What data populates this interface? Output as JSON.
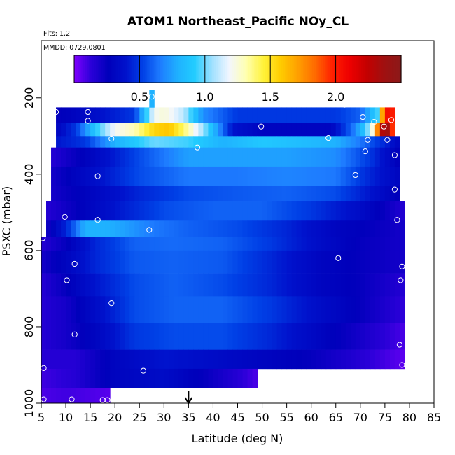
{
  "chart_data": {
    "type": "heatmap",
    "title": "ATOM1 Northeast_Pacific NOy_CL",
    "annotations": {
      "flights": "Flts: 1,2",
      "dates": "MMDD: 0729,0801"
    },
    "xlabel": "Latitude (deg N)",
    "ylabel": "PSXC (mbar)",
    "xlim": [
      5,
      85
    ],
    "ylim": [
      1000,
      50
    ],
    "y_reversed": true,
    "x_ticks": [
      5,
      10,
      15,
      20,
      25,
      30,
      35,
      40,
      45,
      50,
      55,
      60,
      65,
      70,
      75,
      80,
      85
    ],
    "y_ticks": [
      200,
      400,
      600,
      800,
      1000
    ],
    "colorbar": {
      "range": [
        0,
        2.5
      ],
      "ticks": [
        0.5,
        1.0,
        1.5,
        2.0
      ],
      "tick_labels": [
        "0.5",
        "1.0",
        "1.5",
        "2.0"
      ],
      "colors": [
        "#7f00ff",
        "#2a00d8",
        "#0000bb",
        "#0012cc",
        "#0040e6",
        "#1e7cff",
        "#1fb0ff",
        "#22ccff",
        "#9ee0ff",
        "#f2f6ff",
        "#ffffb0",
        "#fff23a",
        "#ffcc00",
        "#ffa000",
        "#ff6a00",
        "#ff2000",
        "#ee0000",
        "#c40000",
        "#a01010",
        "#8b1a1a"
      ]
    },
    "marker": {
      "latitude": 35,
      "direction": "down"
    },
    "layers": [
      {
        "p_top": 225,
        "p_bot": 265,
        "lat_min": 8,
        "lat_max": 77,
        "points": [
          [
            8,
            0.25
          ],
          [
            12,
            0.3
          ],
          [
            18,
            0.4
          ],
          [
            24,
            0.5
          ],
          [
            28,
            1.2
          ],
          [
            30,
            1.25
          ],
          [
            34,
            1.1
          ],
          [
            38,
            0.7
          ],
          [
            45,
            0.5
          ],
          [
            50,
            0.5
          ],
          [
            58,
            0.5
          ],
          [
            65,
            0.5
          ],
          [
            70,
            0.6
          ],
          [
            74,
            1.0
          ],
          [
            75,
            2.4
          ],
          [
            76,
            1.7
          ],
          [
            77,
            2.3
          ]
        ]
      },
      {
        "p_top": 265,
        "p_bot": 300,
        "lat_min": 8,
        "lat_max": 77,
        "points": [
          [
            8,
            0.3
          ],
          [
            12,
            0.5
          ],
          [
            16,
            0.9
          ],
          [
            20,
            1.2
          ],
          [
            24,
            1.3
          ],
          [
            28,
            1.55
          ],
          [
            31,
            1.6
          ],
          [
            34,
            1.4
          ],
          [
            38,
            1.05
          ],
          [
            44,
            0.4
          ],
          [
            50,
            0.3
          ],
          [
            58,
            0.3
          ],
          [
            64,
            0.3
          ],
          [
            68,
            0.6
          ],
          [
            71,
            0.9
          ],
          [
            73,
            1.35
          ],
          [
            74,
            2.2
          ],
          [
            75,
            2.4
          ],
          [
            76,
            2.3
          ],
          [
            77,
            1.6
          ]
        ]
      },
      {
        "p_top": 300,
        "p_bot": 330,
        "lat_min": 8,
        "lat_max": 78,
        "points": [
          [
            8,
            0.4
          ],
          [
            14,
            0.5
          ],
          [
            20,
            0.8
          ],
          [
            28,
            1.0
          ],
          [
            35,
            0.95
          ],
          [
            42,
            0.8
          ],
          [
            50,
            0.9
          ],
          [
            58,
            0.85
          ],
          [
            65,
            0.8
          ],
          [
            70,
            0.65
          ],
          [
            75,
            0.45
          ],
          [
            78,
            0.3
          ]
        ]
      },
      {
        "p_top": 330,
        "p_bot": 380,
        "lat_min": 7,
        "lat_max": 78,
        "points": [
          [
            7,
            0.15
          ],
          [
            15,
            0.3
          ],
          [
            25,
            0.55
          ],
          [
            35,
            0.75
          ],
          [
            45,
            0.75
          ],
          [
            55,
            0.75
          ],
          [
            65,
            0.7
          ],
          [
            72,
            0.5
          ],
          [
            78,
            0.25
          ]
        ]
      },
      {
        "p_top": 380,
        "p_bot": 430,
        "lat_min": 7,
        "lat_max": 78,
        "points": [
          [
            7,
            0.2
          ],
          [
            15,
            0.35
          ],
          [
            25,
            0.55
          ],
          [
            35,
            0.65
          ],
          [
            45,
            0.65
          ],
          [
            55,
            0.68
          ],
          [
            65,
            0.65
          ],
          [
            72,
            0.45
          ],
          [
            78,
            0.3
          ]
        ]
      },
      {
        "p_top": 430,
        "p_bot": 470,
        "lat_min": 7,
        "lat_max": 78,
        "points": [
          [
            7,
            0.2
          ],
          [
            15,
            0.3
          ],
          [
            25,
            0.45
          ],
          [
            35,
            0.55
          ],
          [
            45,
            0.58
          ],
          [
            55,
            0.6
          ],
          [
            65,
            0.55
          ],
          [
            72,
            0.4
          ],
          [
            78,
            0.25
          ]
        ]
      },
      {
        "p_top": 470,
        "p_bot": 520,
        "lat_min": 6,
        "lat_max": 79,
        "points": [
          [
            6,
            0.15
          ],
          [
            12,
            0.25
          ],
          [
            20,
            0.4
          ],
          [
            30,
            0.55
          ],
          [
            40,
            0.6
          ],
          [
            50,
            0.6
          ],
          [
            60,
            0.5
          ],
          [
            70,
            0.35
          ],
          [
            79,
            0.15
          ]
        ]
      },
      {
        "p_top": 520,
        "p_bot": 565,
        "lat_min": 6,
        "lat_max": 79,
        "points": [
          [
            6,
            0.2
          ],
          [
            10,
            0.45
          ],
          [
            14,
            0.8
          ],
          [
            18,
            0.8
          ],
          [
            22,
            0.75
          ],
          [
            28,
            0.65
          ],
          [
            35,
            0.6
          ],
          [
            45,
            0.55
          ],
          [
            55,
            0.45
          ],
          [
            65,
            0.3
          ],
          [
            72,
            0.25
          ],
          [
            79,
            0.2
          ]
        ]
      },
      {
        "p_top": 565,
        "p_bot": 600,
        "lat_min": 5,
        "lat_max": 79,
        "points": [
          [
            5,
            0.15
          ],
          [
            10,
            0.25
          ],
          [
            16,
            0.45
          ],
          [
            24,
            0.6
          ],
          [
            32,
            0.62
          ],
          [
            42,
            0.6
          ],
          [
            52,
            0.5
          ],
          [
            62,
            0.35
          ],
          [
            70,
            0.25
          ],
          [
            79,
            0.2
          ]
        ]
      },
      {
        "p_top": 600,
        "p_bot": 660,
        "lat_min": 5,
        "lat_max": 79,
        "points": [
          [
            5,
            0.2
          ],
          [
            10,
            0.3
          ],
          [
            16,
            0.45
          ],
          [
            24,
            0.58
          ],
          [
            32,
            0.6
          ],
          [
            42,
            0.58
          ],
          [
            52,
            0.45
          ],
          [
            62,
            0.3
          ],
          [
            70,
            0.25
          ],
          [
            79,
            0.2
          ]
        ]
      },
      {
        "p_top": 660,
        "p_bot": 720,
        "lat_min": 5,
        "lat_max": 79,
        "points": [
          [
            5,
            0.15
          ],
          [
            10,
            0.25
          ],
          [
            16,
            0.4
          ],
          [
            24,
            0.55
          ],
          [
            32,
            0.6
          ],
          [
            42,
            0.55
          ],
          [
            52,
            0.45
          ],
          [
            62,
            0.3
          ],
          [
            70,
            0.25
          ],
          [
            79,
            0.15
          ]
        ]
      },
      {
        "p_top": 720,
        "p_bot": 790,
        "lat_min": 5,
        "lat_max": 79,
        "points": [
          [
            5,
            0.15
          ],
          [
            10,
            0.2
          ],
          [
            16,
            0.35
          ],
          [
            24,
            0.55
          ],
          [
            32,
            0.6
          ],
          [
            42,
            0.6
          ],
          [
            52,
            0.5
          ],
          [
            62,
            0.35
          ],
          [
            70,
            0.25
          ],
          [
            79,
            0.12
          ]
        ]
      },
      {
        "p_top": 790,
        "p_bot": 860,
        "lat_min": 5,
        "lat_max": 79,
        "points": [
          [
            5,
            0.15
          ],
          [
            10,
            0.2
          ],
          [
            16,
            0.3
          ],
          [
            24,
            0.5
          ],
          [
            32,
            0.55
          ],
          [
            42,
            0.55
          ],
          [
            52,
            0.45
          ],
          [
            62,
            0.3
          ],
          [
            70,
            0.2
          ],
          [
            79,
            0.08
          ]
        ]
      },
      {
        "p_top": 860,
        "p_bot": 910,
        "lat_min": 5,
        "lat_max": 79,
        "points": [
          [
            5,
            0.15
          ],
          [
            12,
            0.15
          ],
          [
            20,
            0.3
          ],
          [
            30,
            0.4
          ],
          [
            40,
            0.35
          ],
          [
            50,
            0.3
          ],
          [
            60,
            0.25
          ],
          [
            70,
            0.15
          ],
          [
            79,
            0.05
          ]
        ]
      },
      {
        "p_top": 910,
        "p_bot": 960,
        "lat_min": 5,
        "lat_max": 49,
        "points": [
          [
            5,
            0.1
          ],
          [
            12,
            0.15
          ],
          [
            20,
            0.3
          ],
          [
            30,
            0.35
          ],
          [
            38,
            0.25
          ],
          [
            45,
            0.15
          ],
          [
            49,
            0.08
          ]
        ]
      },
      {
        "p_top": 960,
        "p_bot": 1000,
        "lat_min": 5,
        "lat_max": 19,
        "points": [
          [
            5,
            0.08
          ],
          [
            10,
            0.1
          ],
          [
            15,
            0.08
          ],
          [
            19,
            0.06
          ]
        ]
      },
      {
        "p_top": 180,
        "p_bot": 225,
        "lat_min": 27,
        "lat_max": 28,
        "points": [
          [
            27,
            0.8
          ],
          [
            28,
            0.8
          ]
        ]
      }
    ],
    "sample_points": [
      [
        8,
        237
      ],
      [
        14.5,
        237
      ],
      [
        27.5,
        197
      ],
      [
        66.8,
        218
      ],
      [
        70.5,
        250
      ],
      [
        72.8,
        263
      ],
      [
        74.8,
        275
      ],
      [
        76.3,
        258
      ],
      [
        14.5,
        260
      ],
      [
        49.8,
        275
      ],
      [
        63.5,
        305
      ],
      [
        71.5,
        310
      ],
      [
        75.5,
        310
      ],
      [
        19.3,
        307
      ],
      [
        36.8,
        330
      ],
      [
        71.0,
        340
      ],
      [
        77.0,
        350
      ],
      [
        16.5,
        405
      ],
      [
        69.0,
        402
      ],
      [
        77.0,
        440
      ],
      [
        9.8,
        512
      ],
      [
        16.5,
        520
      ],
      [
        27.0,
        546
      ],
      [
        77.5,
        520
      ],
      [
        5.3,
        568
      ],
      [
        65.5,
        620
      ],
      [
        11.8,
        635
      ],
      [
        78.5,
        642
      ],
      [
        10.2,
        678
      ],
      [
        78.2,
        678
      ],
      [
        19.3,
        738
      ],
      [
        11.8,
        820
      ],
      [
        78.0,
        847
      ],
      [
        78.5,
        900
      ],
      [
        5.5,
        908
      ],
      [
        25.8,
        915
      ],
      [
        5.5,
        990
      ],
      [
        11.2,
        990
      ],
      [
        17.5,
        992
      ],
      [
        18.5,
        992
      ]
    ]
  }
}
